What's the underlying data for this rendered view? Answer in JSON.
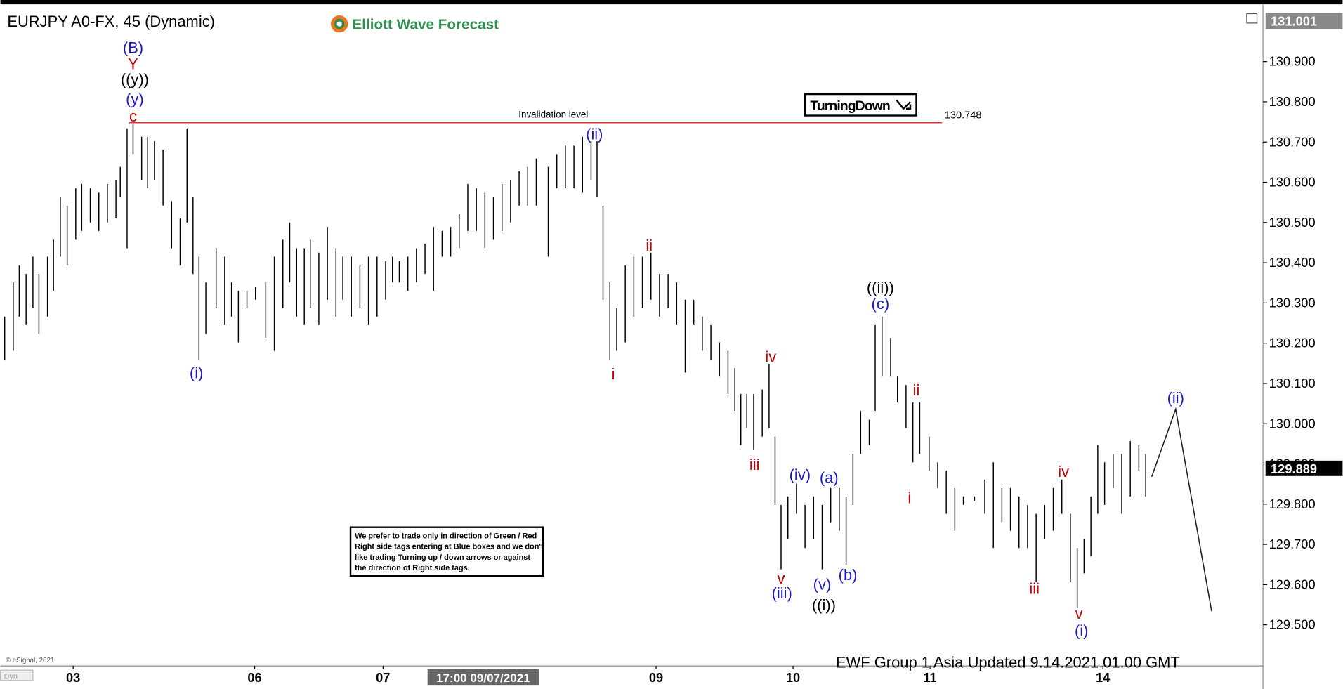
{
  "chart_data": {
    "type": "ohlc",
    "title": "EURJPY A0-FX, 45 (Dynamic)",
    "brand": "Elliott Wave Forecast",
    "footer": "EWF Group 1 Asia Updated 9.14.2021 01.00 GMT",
    "copyright": "© eSignal, 2021",
    "corner_label": "Dyn",
    "cursor_label": {
      "value": 56,
      "label": "17:00 09/07/2021"
    },
    "signal": "TurningDown",
    "note": [
      "We prefer to trade only in direction of Green / Red",
      "Right side tags entering at Blue boxes and we don't",
      "like trading Turning up / down arrows or against",
      "the direction of Right side tags."
    ],
    "color": "#000000",
    "xlim": [
      0,
      147.5
    ],
    "xticks": [
      {
        "value": 8.5,
        "label": "03"
      },
      {
        "value": 29.7,
        "label": "06"
      },
      {
        "value": 44.7,
        "label": "07"
      },
      {
        "value": 76.6,
        "label": "09"
      },
      {
        "value": 92.6,
        "label": "10"
      },
      {
        "value": 108.6,
        "label": "11"
      },
      {
        "value": 128.8,
        "label": "14"
      }
    ],
    "ylim": [
      129.398,
      131.036
    ],
    "yticks": [
      {
        "value": 129.5,
        "label": "129.500"
      },
      {
        "value": 129.6,
        "label": "129.600"
      },
      {
        "value": 129.7,
        "label": "129.700"
      },
      {
        "value": 129.8,
        "label": "129.800"
      },
      {
        "value": 129.9,
        "label": "129.900"
      },
      {
        "value": 130.0,
        "label": "130.000"
      },
      {
        "value": 130.1,
        "label": "130.100"
      },
      {
        "value": 130.2,
        "label": "130.200"
      },
      {
        "value": 130.3,
        "label": "130.300"
      },
      {
        "value": 130.4,
        "label": "130.400"
      },
      {
        "value": 130.5,
        "label": "130.500"
      },
      {
        "value": 130.6,
        "label": "130.600"
      },
      {
        "value": 130.7,
        "label": "130.700"
      },
      {
        "value": 130.8,
        "label": "130.800"
      },
      {
        "value": 130.9,
        "label": "130.900"
      }
    ],
    "top_price": 131.001,
    "last_price": 129.889,
    "invalidation": {
      "label": "Invalidation level",
      "value": 130.748,
      "color": "#e03030"
    },
    "x": [
      0.5,
      1.5,
      2.2,
      3.0,
      3.8,
      4.5,
      5.5,
      6.2,
      7.0,
      7.8,
      8.8,
      9.5,
      10.5,
      11.5,
      12.5,
      13.5,
      14.0,
      14.8,
      15.5,
      16.5,
      17.2,
      18.0,
      19.0,
      20.0,
      21.0,
      21.8,
      22.5,
      23.2,
      24.0,
      25.2,
      26.2,
      27.0,
      27.8,
      28.8,
      29.8,
      31.0,
      32.0,
      33.0,
      33.8,
      34.6,
      35.5,
      36.2,
      37.2,
      38.2,
      39.2,
      40.0,
      41.0,
      42.0,
      43.0,
      44.0,
      45.0,
      45.8,
      46.6,
      47.6,
      48.6,
      49.6,
      50.6,
      51.6,
      52.6,
      53.6,
      54.6,
      55.6,
      56.6,
      57.6,
      58.6,
      59.6,
      60.6,
      61.6,
      62.6,
      64.0,
      65.0,
      66.0,
      67.0,
      68.0,
      69.0,
      69.7,
      70.4,
      71.2,
      72.0,
      73.0,
      74.0,
      75.0,
      76.0,
      77.0,
      78.0,
      79.0,
      80.0,
      81.0,
      82.0,
      83.0,
      84.0,
      85.0,
      85.8,
      86.5,
      87.2,
      88.0,
      89.0,
      89.8,
      90.5,
      91.2,
      92.0,
      93.0,
      94.0,
      95.0,
      96.0,
      97.0,
      98.0,
      98.8,
      99.6,
      100.5,
      101.5,
      102.2,
      103.0,
      104.0,
      104.8,
      105.8,
      106.6,
      107.4,
      108.5,
      109.5,
      110.5,
      111.5,
      112.5,
      113.8,
      115.0,
      116.0,
      117.0,
      118.0,
      119.0,
      120.0,
      121.0,
      122.0,
      123.0,
      124.0,
      125.0,
      125.8,
      126.6,
      127.4,
      128.2,
      129.0,
      130.0,
      131.0,
      132.0,
      133.0,
      133.8
    ],
    "high": [
      130.266,
      130.351,
      130.393,
      130.372,
      130.415,
      130.372,
      130.415,
      130.457,
      130.564,
      130.542,
      130.585,
      130.596,
      130.585,
      130.574,
      130.596,
      130.606,
      130.638,
      130.734,
      130.745,
      130.713,
      130.713,
      130.702,
      130.681,
      130.553,
      130.51,
      130.734,
      130.564,
      130.415,
      130.351,
      130.436,
      130.415,
      130.351,
      130.33,
      130.33,
      130.34,
      130.351,
      130.415,
      130.457,
      130.5,
      130.436,
      130.436,
      130.457,
      130.425,
      130.489,
      130.436,
      130.415,
      130.415,
      130.393,
      130.415,
      130.415,
      130.404,
      130.415,
      130.404,
      130.415,
      130.436,
      130.447,
      130.489,
      130.479,
      130.489,
      130.521,
      130.596,
      130.585,
      130.574,
      130.564,
      130.596,
      130.606,
      130.627,
      130.638,
      130.659,
      130.638,
      130.67,
      130.691,
      130.691,
      130.713,
      130.702,
      130.702,
      130.542,
      130.351,
      130.287,
      130.393,
      130.415,
      130.415,
      130.425,
      130.372,
      130.372,
      130.351,
      130.308,
      130.308,
      130.266,
      130.245,
      130.202,
      130.181,
      130.138,
      130.074,
      130.074,
      130.074,
      130.085,
      130.149,
      129.968,
      129.798,
      129.819,
      129.851,
      129.798,
      129.819,
      129.798,
      129.84,
      129.84,
      129.819,
      129.925,
      130.032,
      130.01,
      130.245,
      130.266,
      130.213,
      130.117,
      130.096,
      130.053,
      130.053,
      129.968,
      129.904,
      129.883,
      129.84,
      129.819,
      129.819,
      129.861,
      129.904,
      129.84,
      129.84,
      129.819,
      129.798,
      129.776,
      129.798,
      129.84,
      129.861,
      129.776,
      129.691,
      129.713,
      129.819,
      129.947,
      129.904,
      129.925,
      129.925,
      129.957,
      129.947,
      129.925
    ],
    "low": [
      130.159,
      130.181,
      130.266,
      130.245,
      130.287,
      130.223,
      130.266,
      130.33,
      130.415,
      130.393,
      130.457,
      130.479,
      130.5,
      130.479,
      130.5,
      130.51,
      130.564,
      130.436,
      130.67,
      130.606,
      130.585,
      130.606,
      130.542,
      130.436,
      130.393,
      130.5,
      130.372,
      130.159,
      130.223,
      130.287,
      130.245,
      130.266,
      130.202,
      130.287,
      130.308,
      130.213,
      130.181,
      130.287,
      130.351,
      130.266,
      130.245,
      130.287,
      130.245,
      130.308,
      130.266,
      130.308,
      130.266,
      130.287,
      130.245,
      130.266,
      130.308,
      130.351,
      130.351,
      130.33,
      130.351,
      130.372,
      130.33,
      130.415,
      130.415,
      130.436,
      130.479,
      130.479,
      130.436,
      130.457,
      130.479,
      130.5,
      130.542,
      130.542,
      130.542,
      130.415,
      130.585,
      130.585,
      130.585,
      130.574,
      130.606,
      130.564,
      130.308,
      130.159,
      130.181,
      130.202,
      130.266,
      130.287,
      130.308,
      130.266,
      130.287,
      130.245,
      130.127,
      130.245,
      130.181,
      130.159,
      130.117,
      130.074,
      130.032,
      129.947,
      129.989,
      129.936,
      129.968,
      129.989,
      129.798,
      129.638,
      129.713,
      129.776,
      129.691,
      129.713,
      129.638,
      129.755,
      129.734,
      129.649,
      129.798,
      129.925,
      129.947,
      130.032,
      130.117,
      130.117,
      130.053,
      129.989,
      129.904,
      129.925,
      129.883,
      129.84,
      129.776,
      129.734,
      129.798,
      129.808,
      129.776,
      129.691,
      129.755,
      129.734,
      129.691,
      129.691,
      129.606,
      129.713,
      129.734,
      129.776,
      129.606,
      129.542,
      129.628,
      129.67,
      129.776,
      129.798,
      129.84,
      129.776,
      129.819,
      129.883,
      129.819
    ],
    "projection": {
      "x": [
        134.5,
        137.3,
        141.5
      ],
      "values": [
        129.868,
        130.036,
        129.534
      ],
      "color": "#222222"
    },
    "annotations": [
      {
        "text": "(B)",
        "color": "#1a1acc"
      },
      {
        "text": "Y",
        "color": "#cc0000"
      },
      {
        "text": "((y))",
        "color": "#000000"
      },
      {
        "text": "(y)",
        "color": "#1a1acc"
      },
      {
        "text": "c",
        "color": "#cc0000"
      },
      {
        "text": "(i)",
        "color": "#1a1acc"
      },
      {
        "text": "(ii)",
        "color": "#1a1acc"
      },
      {
        "text": "i",
        "color": "#cc0000"
      },
      {
        "text": "ii",
        "color": "#cc0000"
      },
      {
        "text": "iv",
        "color": "#cc0000"
      },
      {
        "text": "iii",
        "color": "#cc0000"
      },
      {
        "text": "v",
        "color": "#cc0000"
      },
      {
        "text": "(iii)",
        "color": "#1a1acc"
      },
      {
        "text": "(iv)",
        "color": "#1a1acc"
      },
      {
        "text": "(a)",
        "color": "#1a1acc"
      },
      {
        "text": "(v)",
        "color": "#1a1acc"
      },
      {
        "text": "((i))",
        "color": "#000000"
      },
      {
        "text": "(b)",
        "color": "#1a1acc"
      },
      {
        "text": "((ii))",
        "color": "#000000"
      },
      {
        "text": "(c)",
        "color": "#1a1acc"
      },
      {
        "text": "ii",
        "color": "#cc0000"
      },
      {
        "text": "i",
        "color": "#cc0000"
      },
      {
        "text": "iii",
        "color": "#cc0000"
      },
      {
        "text": "iv",
        "color": "#cc0000"
      },
      {
        "text": "v",
        "color": "#cc0000"
      },
      {
        "text": "(i)",
        "color": "#1a1acc"
      },
      {
        "text": "(ii)",
        "color": "#1a1acc"
      }
    ]
  }
}
